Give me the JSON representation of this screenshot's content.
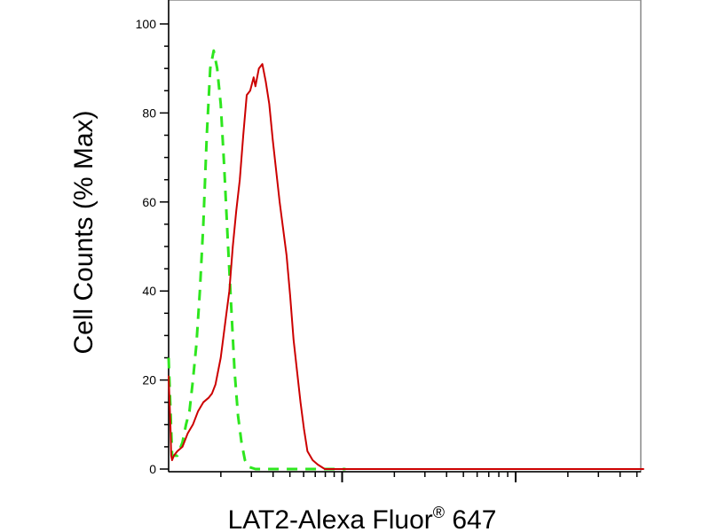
{
  "chart_data": {
    "type": "line",
    "title": "",
    "xlabel": "LAT2-Alexa Fluor",
    "xlabel_superscript": "®",
    "xlabel_suffix": " 647",
    "ylabel": "Cell Counts (% Max)",
    "x_scale": "log",
    "x_tick_labels": [],
    "ylim": [
      0,
      100
    ],
    "y_ticks": [
      0,
      20,
      40,
      60,
      80,
      100
    ],
    "y_tick_labels": [
      "0",
      "20",
      "40",
      "60",
      "80",
      "100"
    ],
    "grid": false,
    "legend": "none",
    "series": [
      {
        "color": "#2ee61e",
        "dash": "dashed",
        "x": [
          0.0,
          0.02,
          0.05,
          0.08,
          0.1,
          0.12,
          0.14,
          0.16,
          0.18,
          0.2,
          0.22,
          0.24,
          0.26,
          0.28,
          0.3,
          0.32,
          0.34,
          0.36,
          0.38,
          0.4,
          0.42,
          0.44,
          0.46,
          0.5,
          0.55,
          0.62,
          0.7,
          0.78,
          0.86,
          0.94,
          1.02
        ],
        "y": [
          25,
          3,
          3,
          6,
          10,
          13,
          20,
          28,
          40,
          55,
          75,
          90,
          94,
          90,
          82,
          68,
          52,
          37,
          22,
          12,
          6,
          2,
          0.5,
          0,
          0,
          0,
          0,
          0,
          0,
          0,
          0
        ]
      },
      {
        "color": "#cc0000",
        "dash": "solid",
        "x": [
          0.0,
          0.01,
          0.015,
          0.02,
          0.03,
          0.05,
          0.08,
          0.11,
          0.14,
          0.17,
          0.2,
          0.23,
          0.25,
          0.27,
          0.3,
          0.33,
          0.35,
          0.37,
          0.39,
          0.41,
          0.43,
          0.45,
          0.47,
          0.49,
          0.5,
          0.52,
          0.54,
          0.56,
          0.58,
          0.6,
          0.62,
          0.64,
          0.66,
          0.68,
          0.7,
          0.72,
          0.74,
          0.76,
          0.78,
          0.8,
          0.83,
          0.86,
          0.9,
          1.0,
          1.1,
          1.2,
          1.3,
          1.4,
          1.5,
          1.6,
          1.7,
          1.8,
          1.9,
          2.0,
          2.1,
          2.2,
          2.3,
          2.4,
          2.5,
          2.6,
          2.7,
          2.74
        ],
        "y": [
          21,
          10,
          3,
          2,
          3,
          4,
          5,
          8,
          10,
          13,
          15,
          16,
          17,
          19,
          25,
          34,
          40,
          50,
          58,
          65,
          75,
          84,
          85,
          88,
          86,
          90,
          91,
          87,
          82,
          74,
          67,
          60,
          54,
          48,
          39,
          29,
          22,
          15,
          9,
          4,
          2,
          1,
          0,
          0,
          0,
          0,
          0,
          0,
          0,
          0,
          0,
          0,
          0,
          0,
          0,
          0,
          0,
          0,
          0,
          0,
          0,
          0
        ]
      }
    ]
  }
}
